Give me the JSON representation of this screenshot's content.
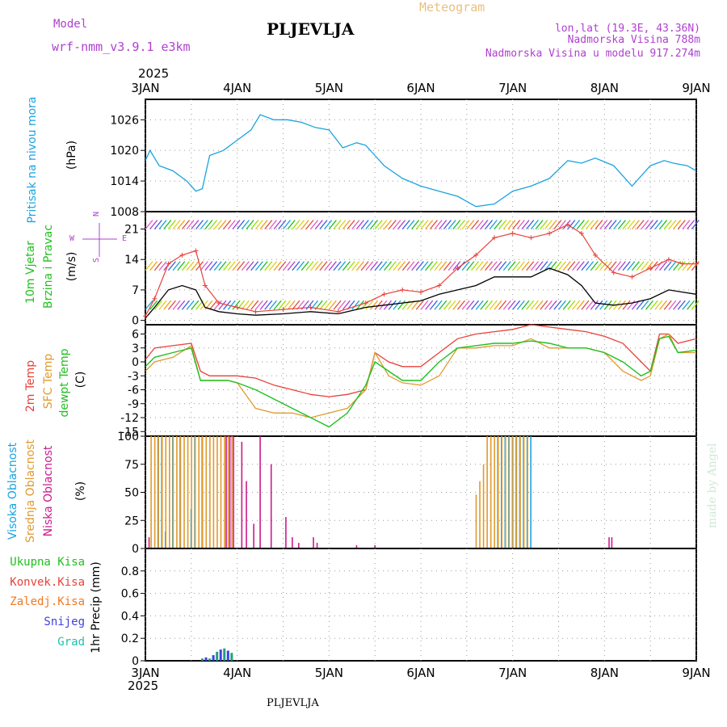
{
  "header": {
    "model_label": "Model",
    "model_name": "wrf-nmm_v3.9.1  e3km",
    "station": "PLJEVLJA",
    "product": "Meteogram",
    "lonlat": "lon,lat (19.3E, 43.36N)",
    "altitude": "Nadmorska Visina 788m",
    "model_altitude": "Nadmorska Visina u modelu 917.274m",
    "year_top": "2025",
    "year_bottom": "2025",
    "footer_station": "PLJEVLJA",
    "credit": "made by Angel"
  },
  "colors": {
    "pressure": "#1aa3e0",
    "temp2m": "#e8413a",
    "sfc_temp": "#e09a2e",
    "dewpt": "#20c020",
    "high_cloud": "#1aa3e0",
    "mid_cloud": "#e09a2e",
    "low_cloud": "#cc1a8c",
    "wind_label": "#20c020",
    "compass": "#b040d0"
  },
  "chart_data": [
    {
      "type": "line",
      "title": "Pritisak na nivou mora",
      "ylabel": "(hPa)",
      "x_ticks": [
        "3JAN",
        "4JAN",
        "5JAN",
        "6JAN",
        "7JAN",
        "8JAN",
        "9JAN"
      ],
      "ylim": [
        1008,
        1030
      ],
      "yticks": [
        1008,
        1014,
        1020,
        1026
      ],
      "x_day": [
        0,
        0.05,
        0.15,
        0.3,
        0.45,
        0.55,
        0.62,
        0.7,
        0.85,
        1.0,
        1.15,
        1.25,
        1.4,
        1.55,
        1.7,
        1.85,
        2.0,
        2.15,
        2.3,
        2.4,
        2.5,
        2.6,
        2.8,
        3.0,
        3.2,
        3.4,
        3.6,
        3.8,
        4.0,
        4.2,
        4.4,
        4.6,
        4.75,
        4.9,
        5.1,
        5.3,
        5.5,
        5.65,
        5.75,
        5.9,
        6.0
      ],
      "series": [
        {
          "name": "pressure",
          "values": [
            1018,
            1020,
            1017,
            1016,
            1014,
            1012,
            1012.5,
            1019,
            1020,
            1022,
            1024,
            1027,
            1026,
            1026,
            1025.5,
            1024.5,
            1024,
            1020.5,
            1021.5,
            1021,
            1019,
            1017,
            1014.5,
            1013,
            1012,
            1011,
            1009,
            1009.5,
            1012,
            1013,
            1014.5,
            1018,
            1017.5,
            1018.5,
            1017,
            1013,
            1017,
            1018,
            1017.5,
            1017,
            1016
          ]
        }
      ]
    },
    {
      "type": "line",
      "title": "10m Vjetar Brzina i Pravac",
      "ylabel": "(m/s)",
      "compass": [
        "N",
        "W",
        "E",
        "S"
      ],
      "ylim": [
        -1,
        25
      ],
      "yticks": [
        0,
        7,
        14,
        21
      ],
      "x_day": [
        0,
        0.1,
        0.25,
        0.4,
        0.55,
        0.65,
        0.8,
        1.0,
        1.2,
        1.5,
        1.8,
        2.1,
        2.4,
        2.6,
        2.8,
        3.0,
        3.2,
        3.4,
        3.6,
        3.8,
        4.0,
        4.2,
        4.4,
        4.6,
        4.75,
        4.9,
        5.1,
        5.3,
        5.5,
        5.7,
        5.85,
        6.0
      ],
      "series": [
        {
          "name": "speed",
          "values": [
            0.5,
            3,
            7,
            8,
            7,
            3,
            2,
            1.5,
            1.2,
            1.5,
            2,
            1.5,
            3,
            3.5,
            4,
            4.5,
            6,
            7,
            8,
            10,
            10,
            10,
            12,
            10.5,
            8,
            4,
            3.5,
            4,
            5,
            7,
            6.5,
            6
          ]
        },
        {
          "name": "gust",
          "values": [
            1,
            5,
            13,
            15,
            16,
            8,
            4,
            3,
            2,
            2.5,
            3,
            2,
            4,
            6,
            7,
            6.5,
            8,
            12,
            15,
            19,
            20,
            19,
            20,
            22,
            20,
            15,
            11,
            10,
            12,
            14,
            13,
            13
          ]
        }
      ]
    },
    {
      "type": "line",
      "title": "2m Temp / SFC Temp / dewpt Temp",
      "ylabel": "(C)",
      "ylim": [
        -16,
        8
      ],
      "yticks": [
        -15,
        -12,
        -9,
        -6,
        -3,
        0,
        3,
        6
      ],
      "x_day": [
        0,
        0.1,
        0.3,
        0.5,
        0.6,
        0.7,
        0.9,
        1.0,
        1.2,
        1.4,
        1.6,
        1.8,
        2.0,
        2.2,
        2.4,
        2.5,
        2.65,
        2.8,
        3.0,
        3.2,
        3.4,
        3.6,
        3.8,
        4.0,
        4.2,
        4.4,
        4.6,
        4.8,
        5.0,
        5.2,
        5.4,
        5.5,
        5.6,
        5.7,
        5.8,
        6.0
      ],
      "series": [
        {
          "name": "2m",
          "values": [
            0.5,
            3,
            3.5,
            4,
            -2,
            -3,
            -3,
            -3,
            -3.5,
            -5,
            -6,
            -7,
            -7.5,
            -7,
            -6,
            2,
            0,
            -1,
            -1,
            2,
            5,
            6,
            6.5,
            7,
            8,
            7.5,
            7,
            6.5,
            5.5,
            4,
            0,
            -2,
            6,
            6,
            4,
            5
          ]
        },
        {
          "name": "sfc",
          "values": [
            -2,
            0,
            1,
            3.5,
            -4,
            -4,
            -4,
            -4.5,
            -10,
            -11,
            -11,
            -12,
            -11,
            -10,
            -6,
            2,
            -3,
            -4.5,
            -5,
            -3,
            3,
            3,
            3.5,
            3.5,
            5,
            3,
            3,
            3,
            2,
            -2,
            -4,
            -3,
            5,
            6,
            2,
            2
          ]
        },
        {
          "name": "dewpt",
          "values": [
            -1,
            1,
            2,
            3,
            -4,
            -4,
            -4,
            -4.5,
            -6,
            -8,
            -10,
            -12,
            -14,
            -11,
            -5,
            0,
            -2,
            -4,
            -4,
            0,
            3,
            3.5,
            4,
            4,
            4.5,
            4,
            3,
            3,
            2,
            0,
            -3,
            -2,
            5,
            5.5,
            2,
            2.5
          ]
        }
      ]
    },
    {
      "type": "bar",
      "title": "Visoka / Srednja / Niska Oblacnost",
      "ylabel": "(%)",
      "ylim": [
        0,
        100
      ],
      "yticks": [
        0,
        25,
        50,
        75,
        100
      ],
      "x_day": [
        0.04,
        0.08,
        0.12,
        0.16,
        0.2,
        0.24,
        0.28,
        0.32,
        0.36,
        0.4,
        0.44,
        0.48,
        0.52,
        0.56,
        0.6,
        0.64,
        0.68,
        0.72,
        0.76,
        0.8,
        0.84,
        0.88,
        0.92,
        0.96,
        1.05,
        1.1,
        1.18,
        1.25,
        1.37,
        1.53,
        1.6,
        1.67,
        1.83,
        1.87,
        2.3,
        2.5,
        3.62,
        3.66,
        3.7,
        3.74,
        3.78,
        3.82,
        3.86,
        3.9,
        3.94,
        3.98,
        4.02,
        4.06,
        4.1,
        4.14,
        4.18,
        5.05,
        5.08
      ],
      "series": [
        {
          "name": "high",
          "values": [
            0,
            0,
            100,
            100,
            15,
            0,
            100,
            0,
            100,
            0,
            0,
            35,
            100,
            0,
            100,
            0,
            0,
            0,
            0,
            0,
            0,
            0,
            0,
            0,
            0,
            0,
            0,
            0,
            0,
            0,
            0,
            0,
            0,
            0,
            0,
            0,
            0,
            0,
            0,
            0,
            0,
            100,
            100,
            100,
            100,
            100,
            100,
            100,
            100,
            100,
            100,
            0,
            0
          ]
        },
        {
          "name": "mid",
          "values": [
            0,
            100,
            100,
            100,
            100,
            100,
            100,
            100,
            100,
            100,
            100,
            100,
            100,
            100,
            100,
            100,
            100,
            100,
            100,
            100,
            100,
            100,
            100,
            100,
            0,
            0,
            0,
            0,
            0,
            0,
            0,
            0,
            0,
            0,
            0,
            0,
            48,
            60,
            75,
            100,
            100,
            100,
            100,
            100,
            100,
            100,
            100,
            100,
            100,
            100,
            100,
            0,
            0
          ]
        },
        {
          "name": "low",
          "values": [
            10,
            0,
            0,
            0,
            0,
            0,
            0,
            0,
            0,
            0,
            0,
            0,
            0,
            0,
            0,
            0,
            0,
            0,
            0,
            0,
            0,
            100,
            100,
            100,
            95,
            60,
            22,
            100,
            75,
            28,
            10,
            5,
            10,
            5,
            3,
            3,
            0,
            0,
            0,
            0,
            0,
            0,
            0,
            0,
            0,
            0,
            0,
            0,
            0,
            0,
            0,
            10,
            10
          ]
        }
      ]
    },
    {
      "type": "bar",
      "title": "1hr Precip",
      "ylabel": "(mm)",
      "legend": [
        "Ukupna Kisa",
        "Konvek.Kisa",
        "Zaledj.Kisa",
        "Snijeg",
        "Grad"
      ],
      "ylim": [
        0,
        1.0
      ],
      "yticks": [
        0,
        0.2,
        0.4,
        0.6,
        0.8
      ],
      "x_day": [
        0.62,
        0.66,
        0.7,
        0.74,
        0.78,
        0.82,
        0.86,
        0.9,
        0.94
      ],
      "series": [
        {
          "name": "snow",
          "values": [
            0.02,
            0.03,
            0.02,
            0.05,
            0.08,
            0.1,
            0.11,
            0.09,
            0.07
          ]
        }
      ]
    }
  ],
  "panel_labels": [
    {
      "lines": [
        "Pritisak na nivou mora"
      ],
      "unit": "(hPa)"
    },
    {
      "lines": [
        "10m Vjetar",
        "Brzina i Pravac"
      ],
      "unit": "(m/s)"
    },
    {
      "lines": [
        "2m Temp",
        "SFC Temp",
        "dewpt Temp"
      ],
      "unit": "(C)"
    },
    {
      "lines": [
        "Visoka Oblacnost",
        "Srednja Oblacnost",
        "Niska Oblacnost"
      ],
      "unit": "(%)"
    }
  ],
  "precip_legend": [
    "Ukupna Kisa",
    "Konvek.Kisa",
    "Zaledj.Kisa",
    "Snijeg",
    "Grad"
  ],
  "precip_axis_label": "1hr Precip (mm)"
}
